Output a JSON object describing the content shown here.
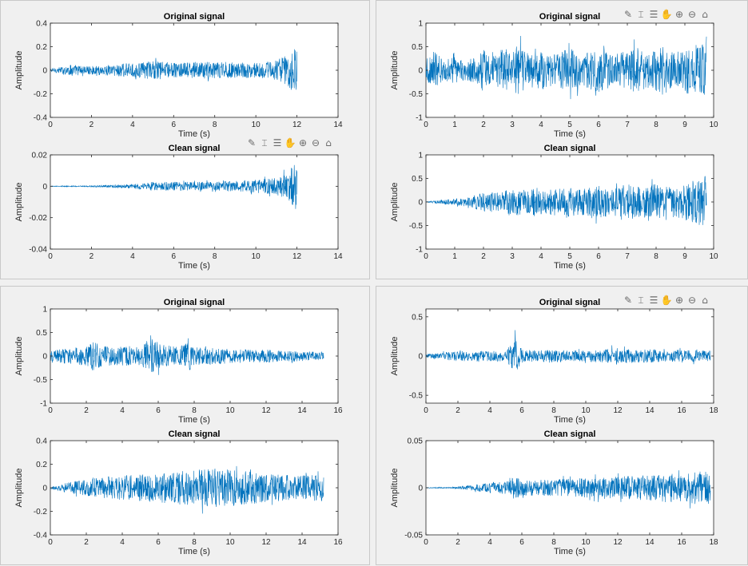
{
  "colors": {
    "signal": "#0072BD",
    "axes": "#262626",
    "background": "#f0f0f0"
  },
  "toolbar": {
    "icons": [
      "brush-icon",
      "data-tip-icon",
      "legend-icon",
      "pan-icon",
      "zoom-in-icon",
      "zoom-out-icon",
      "home-icon"
    ],
    "glyphs": [
      "✎",
      "⌶",
      "☰",
      "✋",
      "⊕",
      "⊖",
      "⌂"
    ]
  },
  "chart_data": [
    {
      "panel": "top-left",
      "plots": [
        {
          "type": "line",
          "title": "Original signal",
          "xlabel": "Time (s)",
          "ylabel": "Amplitude",
          "xlim": [
            0,
            14
          ],
          "ylim": [
            -0.4,
            0.4
          ],
          "xticks": [
            "0",
            "2",
            "4",
            "6",
            "8",
            "10",
            "12",
            "14"
          ],
          "yticks": [
            "-0.4",
            "-0.2",
            "0",
            "0.2",
            "0.4"
          ],
          "duration": 12.0,
          "envelope": [
            [
              0,
              0.02
            ],
            [
              0.5,
              0.04
            ],
            [
              1,
              0.07
            ],
            [
              2,
              0.05
            ],
            [
              3,
              0.07
            ],
            [
              3.5,
              0.09
            ],
            [
              4,
              0.08
            ],
            [
              5,
              0.12
            ],
            [
              6,
              0.09
            ],
            [
              7,
              0.1
            ],
            [
              8,
              0.11
            ],
            [
              9,
              0.1
            ],
            [
              10,
              0.09
            ],
            [
              11,
              0.12
            ],
            [
              11.6,
              0.2
            ],
            [
              11.9,
              0.3
            ],
            [
              12,
              0.3
            ]
          ]
        },
        {
          "type": "line",
          "title": "Clean signal",
          "xlabel": "Time (s)",
          "ylabel": "Amplitude",
          "xlim": [
            0,
            14
          ],
          "ylim": [
            -0.04,
            0.02
          ],
          "xticks": [
            "0",
            "2",
            "4",
            "6",
            "8",
            "10",
            "12",
            "14"
          ],
          "yticks": [
            "-0.04",
            "-0.02",
            "0",
            "0.02"
          ],
          "duration": 12.0,
          "envelope": [
            [
              0,
              0.0003
            ],
            [
              2,
              0.0006
            ],
            [
              3,
              0.0012
            ],
            [
              4,
              0.002
            ],
            [
              5,
              0.004
            ],
            [
              6,
              0.004
            ],
            [
              7,
              0.004
            ],
            [
              8,
              0.004
            ],
            [
              9,
              0.005
            ],
            [
              10,
              0.006
            ],
            [
              11,
              0.008
            ],
            [
              11.5,
              0.012
            ],
            [
              11.8,
              0.02
            ],
            [
              12,
              0.025
            ]
          ]
        }
      ]
    },
    {
      "panel": "top-right",
      "plots": [
        {
          "type": "line",
          "title": "Original signal",
          "xlabel": "Time (s)",
          "ylabel": "Amplitude",
          "xlim": [
            0,
            10
          ],
          "ylim": [
            -1,
            1
          ],
          "xticks": [
            "0",
            "1",
            "2",
            "3",
            "4",
            "5",
            "6",
            "7",
            "8",
            "9",
            "10"
          ],
          "yticks": [
            "-1",
            "-0.5",
            "0",
            "0.5",
            "1"
          ],
          "duration": 9.75,
          "envelope": [
            [
              0,
              0.3
            ],
            [
              0.3,
              0.6
            ],
            [
              0.6,
              0.3
            ],
            [
              1,
              0.4
            ],
            [
              1.4,
              0.3
            ],
            [
              2,
              0.5
            ],
            [
              2.3,
              0.4
            ],
            [
              2.7,
              0.7
            ],
            [
              3,
              0.5
            ],
            [
              3.2,
              0.8
            ],
            [
              3.6,
              0.5
            ],
            [
              4,
              0.6
            ],
            [
              4.4,
              0.5
            ],
            [
              5,
              0.7
            ],
            [
              5.4,
              0.5
            ],
            [
              5.8,
              0.6
            ],
            [
              6.2,
              0.7
            ],
            [
              6.6,
              0.5
            ],
            [
              7,
              0.6
            ],
            [
              7.4,
              0.7
            ],
            [
              7.8,
              0.5
            ],
            [
              8.2,
              0.8
            ],
            [
              8.6,
              0.5
            ],
            [
              9,
              0.7
            ],
            [
              9.5,
              0.8
            ],
            [
              9.75,
              0.8
            ]
          ]
        },
        {
          "type": "line",
          "title": "Clean signal",
          "xlabel": "Time (s)",
          "ylabel": "Amplitude",
          "xlim": [
            0,
            10
          ],
          "ylim": [
            -1,
            1
          ],
          "xticks": [
            "0",
            "1",
            "2",
            "3",
            "4",
            "5",
            "6",
            "7",
            "8",
            "9",
            "10"
          ],
          "yticks": [
            "-1",
            "-0.5",
            "0",
            "0.5",
            "1"
          ],
          "duration": 9.75,
          "envelope": [
            [
              0,
              0.01
            ],
            [
              0.3,
              0.04
            ],
            [
              1,
              0.1
            ],
            [
              1.5,
              0.15
            ],
            [
              2,
              0.3
            ],
            [
              2.5,
              0.3
            ],
            [
              3,
              0.45
            ],
            [
              3.5,
              0.35
            ],
            [
              4,
              0.5
            ],
            [
              4.5,
              0.4
            ],
            [
              5,
              0.45
            ],
            [
              5.5,
              0.4
            ],
            [
              6,
              0.5
            ],
            [
              6.5,
              0.4
            ],
            [
              7,
              0.55
            ],
            [
              7.5,
              0.45
            ],
            [
              8,
              0.55
            ],
            [
              8.5,
              0.45
            ],
            [
              9,
              0.6
            ],
            [
              9.5,
              0.7
            ],
            [
              9.75,
              0.8
            ]
          ]
        }
      ]
    },
    {
      "panel": "bottom-left",
      "plots": [
        {
          "type": "line",
          "title": "Original signal",
          "xlabel": "Time (s)",
          "ylabel": "Amplitude",
          "xlim": [
            0,
            16
          ],
          "ylim": [
            -1,
            1
          ],
          "xticks": [
            "0",
            "2",
            "4",
            "6",
            "8",
            "10",
            "12",
            "14",
            "16"
          ],
          "yticks": [
            "-1",
            "-0.5",
            "0",
            "0.5",
            "1"
          ],
          "duration": 15.2,
          "envelope": [
            [
              0,
              0.15
            ],
            [
              1,
              0.25
            ],
            [
              2,
              0.3
            ],
            [
              2.5,
              0.5
            ],
            [
              3,
              0.3
            ],
            [
              4,
              0.3
            ],
            [
              5,
              0.3
            ],
            [
              5.8,
              0.55
            ],
            [
              6.2,
              0.35
            ],
            [
              7,
              0.3
            ],
            [
              7.7,
              0.45
            ],
            [
              8,
              0.3
            ],
            [
              9,
              0.25
            ],
            [
              10,
              0.22
            ],
            [
              11,
              0.2
            ],
            [
              12,
              0.2
            ],
            [
              13,
              0.16
            ],
            [
              14,
              0.15
            ],
            [
              15.2,
              0.12
            ]
          ]
        },
        {
          "type": "line",
          "title": "Clean signal",
          "xlabel": "Time (s)",
          "ylabel": "Amplitude",
          "xlim": [
            0,
            16
          ],
          "ylim": [
            -0.4,
            0.4
          ],
          "xticks": [
            "0",
            "2",
            "4",
            "6",
            "8",
            "10",
            "12",
            "14",
            "16"
          ],
          "yticks": [
            "-0.4",
            "-0.2",
            "0",
            "0.2",
            "0.4"
          ],
          "duration": 15.2,
          "envelope": [
            [
              0,
              0.01
            ],
            [
              0.5,
              0.04
            ],
            [
              1,
              0.07
            ],
            [
              2,
              0.1
            ],
            [
              3,
              0.13
            ],
            [
              4,
              0.15
            ],
            [
              5,
              0.17
            ],
            [
              6,
              0.18
            ],
            [
              7,
              0.2
            ],
            [
              8,
              0.22
            ],
            [
              9,
              0.24
            ],
            [
              10,
              0.22
            ],
            [
              11,
              0.2
            ],
            [
              12,
              0.18
            ],
            [
              13,
              0.16
            ],
            [
              14,
              0.15
            ],
            [
              15.2,
              0.17
            ]
          ]
        }
      ]
    },
    {
      "panel": "bottom-right",
      "plots": [
        {
          "type": "line",
          "title": "Original signal",
          "xlabel": "Time (s)",
          "ylabel": "Amplitude",
          "xlim": [
            0,
            18
          ],
          "ylim": [
            -0.6,
            0.6
          ],
          "xticks": [
            "0",
            "2",
            "4",
            "6",
            "8",
            "10",
            "12",
            "14",
            "16",
            "18"
          ],
          "yticks": [
            "-0.5",
            "0",
            "0.5"
          ],
          "duration": 17.8,
          "envelope": [
            [
              0,
              0.04
            ],
            [
              1,
              0.06
            ],
            [
              2,
              0.1
            ],
            [
              3,
              0.08
            ],
            [
              4,
              0.1
            ],
            [
              5,
              0.1
            ],
            [
              5.6,
              0.35
            ],
            [
              6,
              0.12
            ],
            [
              7,
              0.1
            ],
            [
              8,
              0.12
            ],
            [
              9,
              0.1
            ],
            [
              10,
              0.1
            ],
            [
              11,
              0.12
            ],
            [
              12,
              0.15
            ],
            [
              13,
              0.12
            ],
            [
              14,
              0.12
            ],
            [
              15,
              0.1
            ],
            [
              16,
              0.12
            ],
            [
              17,
              0.1
            ],
            [
              17.8,
              0.1
            ]
          ]
        },
        {
          "type": "line",
          "title": "Clean signal",
          "xlabel": "Time (s)",
          "ylabel": "Amplitude",
          "xlim": [
            0,
            18
          ],
          "ylim": [
            -0.05,
            0.05
          ],
          "xticks": [
            "0",
            "2",
            "4",
            "6",
            "8",
            "10",
            "12",
            "14",
            "16",
            "18"
          ],
          "yticks": [
            "-0.05",
            "0",
            "0.05"
          ],
          "duration": 17.8,
          "envelope": [
            [
              0,
              0.0005
            ],
            [
              1.5,
              0.001
            ],
            [
              2.5,
              0.003
            ],
            [
              3,
              0.005
            ],
            [
              4,
              0.008
            ],
            [
              5,
              0.01
            ],
            [
              5.6,
              0.018
            ],
            [
              6,
              0.012
            ],
            [
              7,
              0.012
            ],
            [
              8,
              0.013
            ],
            [
              9,
              0.014
            ],
            [
              10,
              0.015
            ],
            [
              11,
              0.016
            ],
            [
              12,
              0.017
            ],
            [
              13,
              0.018
            ],
            [
              14,
              0.02
            ],
            [
              15,
              0.022
            ],
            [
              16,
              0.022
            ],
            [
              17,
              0.025
            ],
            [
              17.8,
              0.025
            ]
          ]
        }
      ]
    }
  ]
}
